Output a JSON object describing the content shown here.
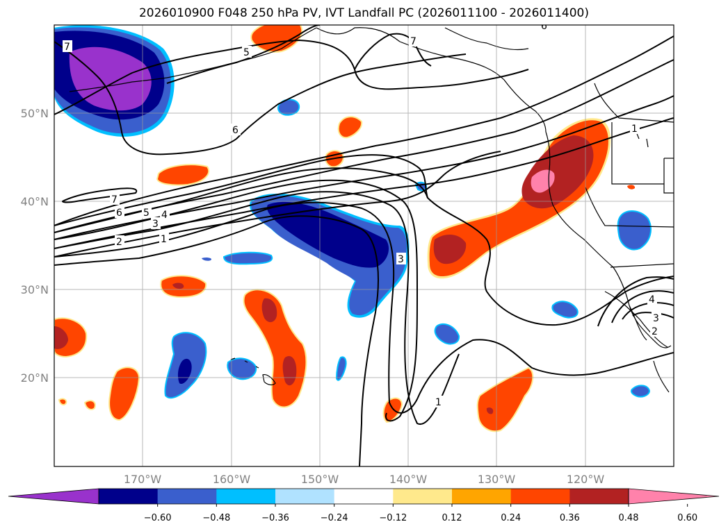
{
  "title": "2026010900 F048 250 hPa PV, IVT Landfall PC (2026011100 - 2026011400)",
  "lat_labels": [
    "50°N",
    "40°N",
    "30°N",
    "20°N"
  ],
  "lon_labels": [
    "170°W",
    "160°W",
    "150°W",
    "140°W",
    "130°W",
    "120°W"
  ],
  "colorbar": {
    "colors": [
      "#9932cc",
      "#00008b",
      "#3a5fcd",
      "#00bfff",
      "#b0e2ff",
      "#ffffff",
      "#ffe98c",
      "#ffa500",
      "#ff4500",
      "#b22222",
      "#ff82ab"
    ],
    "ticks": [
      "−0.60",
      "−0.48",
      "−0.36",
      "−0.24",
      "−0.12",
      "0.12",
      "0.24",
      "0.36",
      "0.48",
      "0.60"
    ]
  },
  "contour_labels": [
    "7",
    "6",
    "5",
    "4",
    "3",
    "2",
    "1",
    "6",
    "5",
    "7",
    "3",
    "1",
    "4",
    "3",
    "2",
    "1",
    "6",
    "7"
  ]
}
